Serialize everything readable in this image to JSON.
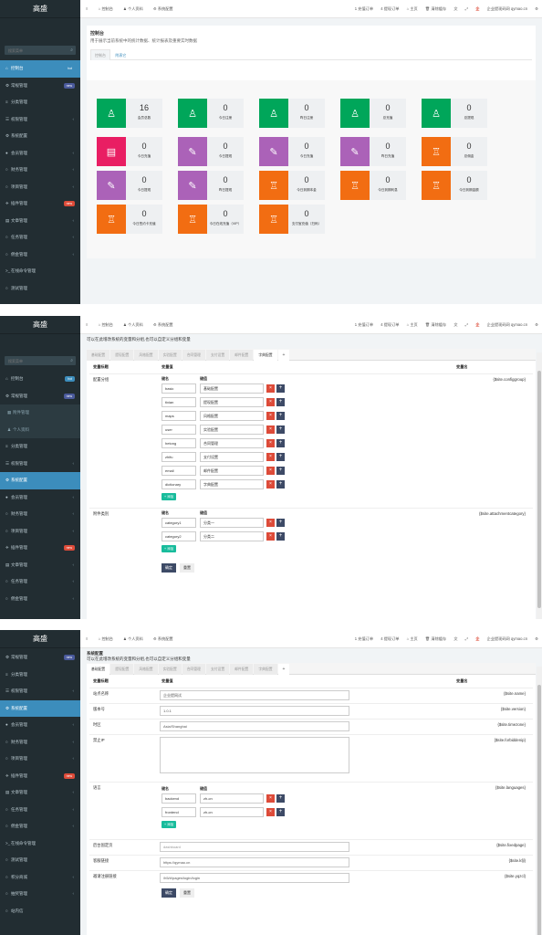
{
  "brand": "高盛",
  "search_placeholder": "搜索菜单",
  "topbar": {
    "left": [
      "控制台",
      "个人资料",
      "系统配置"
    ],
    "right": [
      "1 充值订单",
      "4 提现订单",
      "主页",
      "清除缓存",
      "企业提现码网 qymao.cn"
    ]
  },
  "sidebar1": [
    {
      "icon": "⌂",
      "label": "控制台",
      "badge": "hot",
      "badge_color": "blue",
      "active": true
    },
    {
      "icon": "⚙",
      "label": "常规管理",
      "badge": "new",
      "badge_color": "darkblue"
    },
    {
      "icon": "≡",
      "label": "分类管理"
    },
    {
      "icon": "☰",
      "label": "权限管理",
      "chev": "‹"
    },
    {
      "icon": "⚙",
      "label": "系统配置"
    },
    {
      "icon": "●",
      "label": "会员管理",
      "chev": "‹"
    },
    {
      "icon": "○",
      "label": "财务管理",
      "chev": "‹"
    },
    {
      "icon": "○",
      "label": "项目管理",
      "chev": "‹"
    },
    {
      "icon": "✈",
      "label": "插件管理",
      "badge": "new",
      "badge_color": "red"
    },
    {
      "icon": "▤",
      "label": "文章管理",
      "chev": "‹"
    },
    {
      "icon": "○",
      "label": "任务管理",
      "chev": "‹"
    },
    {
      "icon": "○",
      "label": "佣金管理",
      "chev": "‹"
    },
    {
      "icon": ">_",
      "label": "在线命令管理"
    },
    {
      "icon": "○",
      "label": "测试管理"
    }
  ],
  "dashboard": {
    "title": "控制台",
    "subtitle": "用于展示当前系统中的统计数据、统计报表及重要实时数据",
    "tabs": [
      "控制台",
      "附表它"
    ],
    "cards": [
      {
        "value": "16",
        "label": "会员总数",
        "color": "green",
        "icon": "♙"
      },
      {
        "value": "0",
        "label": "今日注册",
        "color": "green",
        "icon": "♙"
      },
      {
        "value": "0",
        "label": "昨日注册",
        "color": "green",
        "icon": "♙"
      },
      {
        "value": "0",
        "label": "总充值",
        "color": "green",
        "icon": "♙"
      },
      {
        "value": "0",
        "label": "总提现",
        "color": "green",
        "icon": "♙"
      },
      {
        "value": "0",
        "label": "今日充值",
        "color": "pink",
        "icon": "▤"
      },
      {
        "value": "0",
        "label": "今日提现",
        "color": "purple",
        "icon": "✎"
      },
      {
        "value": "0",
        "label": "今日充值",
        "color": "purple",
        "icon": "✎"
      },
      {
        "value": "0",
        "label": "昨日充值",
        "color": "purple",
        "icon": "✎"
      },
      {
        "value": "0",
        "label": "总佣金",
        "color": "orange",
        "icon": "♖"
      },
      {
        "value": "0",
        "label": "今日提现",
        "color": "purple",
        "icon": "✎"
      },
      {
        "value": "0",
        "label": "昨日提现",
        "color": "purple",
        "icon": "✎"
      },
      {
        "value": "0",
        "label": "今日到期本金",
        "color": "orange",
        "icon": "♖"
      },
      {
        "value": "0",
        "label": "今日到期利息",
        "color": "orange",
        "icon": "♖"
      },
      {
        "value": "0",
        "label": "今日到期金额",
        "color": "orange",
        "icon": "♖"
      },
      {
        "value": "0",
        "label": "今日签约卡充值",
        "color": "orange",
        "icon": "♖"
      },
      {
        "value": "0",
        "label": "今日在线充值（VIP）",
        "color": "orange",
        "icon": "♖"
      },
      {
        "value": "0",
        "label": "支付宝充值（扫码）",
        "color": "orange",
        "icon": "♖"
      }
    ]
  },
  "sidebar2": [
    {
      "icon": "⌂",
      "label": "控制台",
      "badge": "hot",
      "badge_color": "blue"
    },
    {
      "icon": "⚙",
      "label": "常规管理",
      "badge": "new",
      "badge_color": "darkblue"
    },
    {
      "icon": "▦",
      "label": "附件管理",
      "sub": true
    },
    {
      "icon": "♟",
      "label": "个人资料",
      "sub": true
    },
    {
      "icon": "≡",
      "label": "分类管理"
    },
    {
      "icon": "☰",
      "label": "权限管理",
      "chev": "‹"
    },
    {
      "icon": "⚙",
      "label": "系统配置",
      "active": true
    },
    {
      "icon": "●",
      "label": "会员管理",
      "chev": "‹"
    },
    {
      "icon": "○",
      "label": "财务管理",
      "chev": "‹"
    },
    {
      "icon": "○",
      "label": "项目管理",
      "chev": "‹"
    },
    {
      "icon": "✈",
      "label": "插件管理",
      "badge": "new",
      "badge_color": "red"
    },
    {
      "icon": "▤",
      "label": "文章管理",
      "chev": "‹"
    },
    {
      "icon": "○",
      "label": "任务管理",
      "chev": "‹"
    },
    {
      "icon": "○",
      "label": "佣金管理",
      "chev": "‹"
    }
  ],
  "config": {
    "desc": "可以在此增改系统的变量和分组,也可以自定义分组和变量",
    "title": "系统配置",
    "tabs": [
      "基础配置",
      "提现配置",
      "风格配置",
      "实验配置",
      "合同管理",
      "支付设置",
      "邮件配置",
      "字典配置",
      "+"
    ],
    "headers": [
      "变量标题",
      "变量值",
      "变量名"
    ],
    "kv_key": "键名",
    "kv_val": "键值",
    "add": "+ 添加",
    "ok": "确定",
    "reset": "重置"
  },
  "config2_rows": [
    {
      "label": "配置分组",
      "var": "{$site.configgroup}",
      "pairs": [
        [
          "basic",
          "基础配置"
        ],
        [
          "tixian",
          "提现配置"
        ],
        [
          "maps",
          "风格配置"
        ],
        [
          "user",
          "实验配置"
        ],
        [
          "hetong",
          "合同管理"
        ],
        [
          "zhifu",
          "支付设置"
        ],
        [
          "email",
          "邮件配置"
        ],
        [
          "dictionary",
          "字典配置"
        ]
      ]
    },
    {
      "label": "附件类别",
      "var": "{$site.attachmentcategory}",
      "pairs": [
        [
          "category1",
          "分类一"
        ],
        [
          "category2",
          "分类二"
        ]
      ]
    }
  ],
  "sidebar3": [
    {
      "icon": "⚙",
      "label": "常规管理",
      "badge": "new",
      "badge_color": "darkblue"
    },
    {
      "icon": "≡",
      "label": "分类管理"
    },
    {
      "icon": "☰",
      "label": "权限管理",
      "chev": "‹"
    },
    {
      "icon": "⚙",
      "label": "系统配置",
      "active": true
    },
    {
      "icon": "●",
      "label": "会员管理",
      "chev": "‹"
    },
    {
      "icon": "○",
      "label": "财务管理",
      "chev": "‹"
    },
    {
      "icon": "○",
      "label": "项目管理",
      "chev": "‹"
    },
    {
      "icon": "✈",
      "label": "插件管理",
      "badge": "new",
      "badge_color": "red"
    },
    {
      "icon": "▤",
      "label": "文章管理",
      "chev": "‹"
    },
    {
      "icon": "○",
      "label": "任务管理",
      "chev": "‹"
    },
    {
      "icon": "○",
      "label": "佣金管理",
      "chev": "‹"
    },
    {
      "icon": ">_",
      "label": "在线命令管理"
    },
    {
      "icon": "○",
      "label": "测试管理"
    },
    {
      "icon": "○",
      "label": "积分商城",
      "chev": "‹"
    },
    {
      "icon": "○",
      "label": "抽奖管理",
      "chev": "‹"
    },
    {
      "icon": "○",
      "label": "站内信"
    }
  ],
  "config3_fields": [
    {
      "label": "站点名称",
      "value": "企业提网试",
      "var": "{$site.name}"
    },
    {
      "label": "版本号",
      "value": "1.0.1",
      "var": "{$site.version}"
    },
    {
      "label": "时区",
      "value": "Asia/Shanghai",
      "var": "{$site.timezone}"
    },
    {
      "label": "禁止IP",
      "value": "",
      "var": "{$site.forbiddenip}"
    }
  ],
  "config3_lang": {
    "label": "语言",
    "var": "{$site.languages}",
    "pairs": [
      [
        "backend",
        "zh-cn"
      ],
      [
        "frontend",
        "zh-cn"
      ]
    ]
  },
  "config3_fields2": [
    {
      "label": "后台固定页",
      "value": "dashboard",
      "var": "{$site.fixedpage}"
    },
    {
      "label": "客服链接",
      "value": "https://qymao.cn",
      "var": "{$site.kfjl}"
    },
    {
      "label": "邀请注册链接",
      "value": "/h5/#/pages/login/login",
      "var": "{$site.yqzcl}"
    }
  ]
}
